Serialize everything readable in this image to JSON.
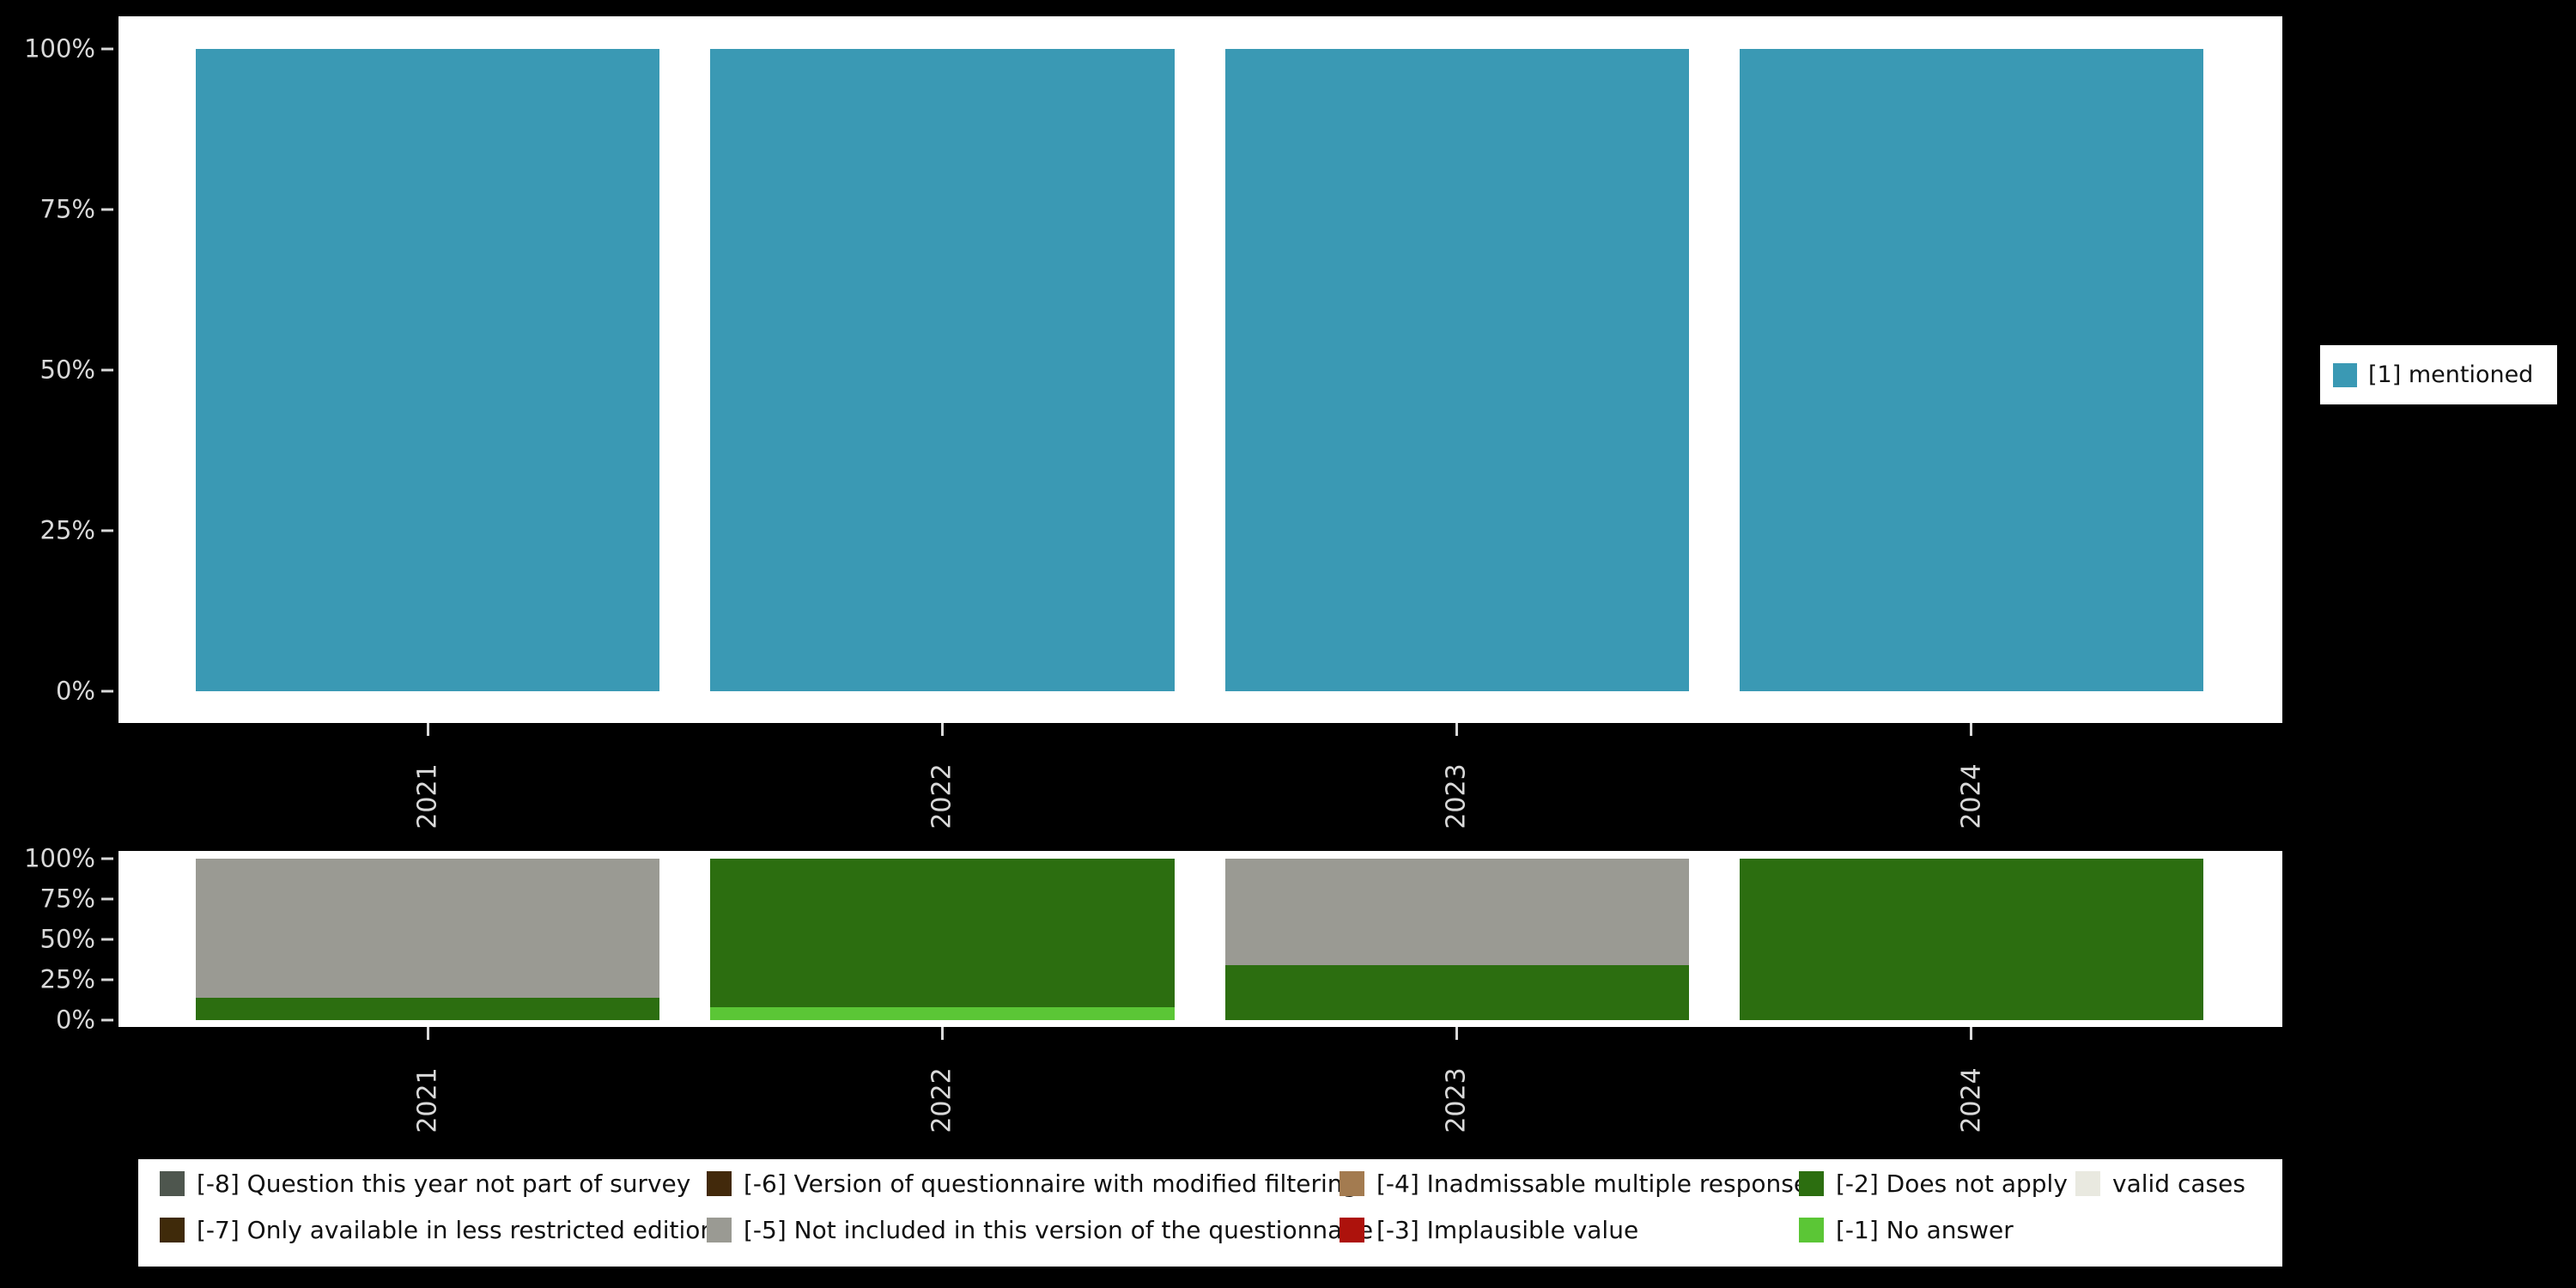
{
  "figure": {
    "background": "#000000",
    "panel_background": "#ffffff",
    "axis_text_color": "#d9d9d9"
  },
  "chart_data": [
    {
      "id": "values",
      "type": "bar",
      "stacked": true,
      "unit": "percent",
      "title": "",
      "xlabel": "",
      "ylabel": "",
      "categories": [
        "2021",
        "2022",
        "2023",
        "2024"
      ],
      "y_ticks": [
        "100%",
        "75%",
        "50%",
        "25%",
        "0%"
      ],
      "ylim": [
        0,
        100
      ],
      "grid": false,
      "legend_position": "right",
      "series": [
        {
          "name": "[1] mentioned",
          "color": "#3a99b4",
          "values": [
            100,
            100,
            100,
            100
          ]
        }
      ],
      "legend": [
        {
          "label": "[1] mentioned",
          "color": "#3a99b4"
        }
      ]
    },
    {
      "id": "missing-values",
      "type": "bar",
      "stacked": true,
      "unit": "percent",
      "title": "",
      "xlabel": "",
      "ylabel": "",
      "categories": [
        "2021",
        "2022",
        "2023",
        "2024"
      ],
      "y_ticks": [
        "100%",
        "75%",
        "50%",
        "25%",
        "0%"
      ],
      "ylim": [
        0,
        100
      ],
      "grid": false,
      "legend_position": "bottom",
      "series": [
        {
          "name": "[-1] No answer",
          "color": "#5bc636",
          "values": [
            0,
            8,
            0,
            0
          ]
        },
        {
          "name": "[-2] Does not apply",
          "color": "#2c6e10",
          "values": [
            14,
            92,
            34,
            100
          ]
        },
        {
          "name": "[-5] Not included in this version of the questionnaire",
          "color": "#9a9a93",
          "values": [
            86,
            0,
            66,
            0
          ]
        }
      ]
    }
  ],
  "legend_bottom": {
    "rows": [
      [
        {
          "label": "[-8] Question this year not part of survey",
          "color": "#4e564e"
        },
        {
          "label": "[-6] Version of questionnaire with modified filtering",
          "color": "#42290b"
        },
        {
          "label": "[-4] Inadmissable multiple response",
          "color": "#a37b50"
        },
        {
          "label": "[-2] Does not apply",
          "color": "#2c6e10"
        },
        {
          "label": "valid cases",
          "color": "#e9e9e0"
        }
      ],
      [
        {
          "label": "[-7] Only available in less restricted edition",
          "color": "#3f2a0a"
        },
        {
          "label": "[-5] Not included in this version of the questionnaire",
          "color": "#9a9a93"
        },
        {
          "label": "[-3] Implausible value",
          "color": "#ad120c"
        },
        {
          "label": "[-1] No answer",
          "color": "#5bc636"
        }
      ]
    ]
  }
}
